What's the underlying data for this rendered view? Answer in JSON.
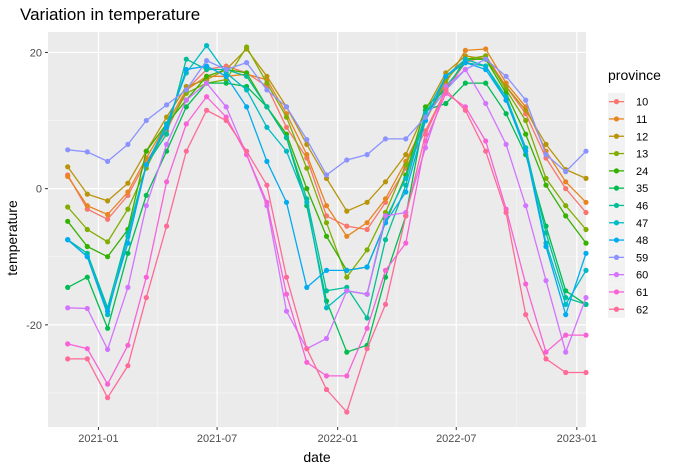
{
  "chart_data": {
    "type": "line",
    "title": "Variation in temperature",
    "xlabel": "date",
    "ylabel": "temperature",
    "x": [
      "2020-11",
      "2020-12",
      "2021-01",
      "2021-02",
      "2021-03",
      "2021-04",
      "2021-05",
      "2021-06",
      "2021-07",
      "2021-08",
      "2021-09",
      "2021-10",
      "2021-11",
      "2021-12",
      "2022-01",
      "2022-02",
      "2022-03",
      "2022-04",
      "2022-05",
      "2022-06",
      "2022-07",
      "2022-08",
      "2022-09",
      "2022-10",
      "2022-11",
      "2022-12",
      "2023-01"
    ],
    "xlim": [
      "2020-10-16",
      "2023-01-15"
    ],
    "x_ticks": [
      {
        "date": "2021-01-01",
        "label": "2021-01"
      },
      {
        "date": "2021-07-01",
        "label": "2021-07"
      },
      {
        "date": "2022-01-01",
        "label": "2022-01"
      },
      {
        "date": "2022-07-01",
        "label": "2022-07"
      },
      {
        "date": "2023-01-01",
        "label": "2023-01"
      }
    ],
    "ylim": [
      -35,
      23
    ],
    "y_ticks": [
      -20,
      0,
      20
    ],
    "grid": true,
    "background": "#EBEBEB",
    "legend": {
      "title": "province",
      "position": "right"
    },
    "series": [
      {
        "name": "10",
        "color": "#F8766D",
        "values": [
          2.0,
          -3.0,
          -4.5,
          -1.0,
          4.0,
          8.5,
          14.5,
          17.5,
          18.0,
          17.0,
          15.0,
          9.0,
          4.5,
          -4.0,
          -5.5,
          -6.0,
          -2.0,
          3.0,
          8.5,
          14.5,
          18.5,
          19.5,
          15.0,
          11.0,
          4.5,
          0.0,
          -3.5
        ]
      },
      {
        "name": "11",
        "color": "#E7851E",
        "values": [
          1.8,
          -2.5,
          -3.8,
          -0.5,
          4.5,
          9.5,
          14.5,
          16.5,
          16.5,
          16.8,
          16.0,
          11.0,
          5.0,
          -2.5,
          -7.0,
          -5.0,
          -1.5,
          4.0,
          10.0,
          15.5,
          20.3,
          20.5,
          15.5,
          12.0,
          5.5,
          1.0,
          -2.0
        ]
      },
      {
        "name": "12",
        "color": "#B8940A",
        "values": [
          3.2,
          -0.8,
          -1.8,
          0.8,
          5.5,
          10.5,
          15.0,
          16.0,
          17.5,
          20.5,
          16.5,
          12.0,
          6.5,
          1.5,
          -3.3,
          -2.0,
          1.0,
          5.0,
          11.5,
          17.0,
          19.5,
          19.0,
          15.0,
          11.5,
          6.5,
          2.8,
          1.5
        ]
      },
      {
        "name": "13",
        "color": "#81AD00",
        "values": [
          -2.7,
          -6.0,
          -7.8,
          -3.0,
          3.0,
          9.0,
          14.0,
          15.5,
          16.0,
          20.8,
          15.5,
          10.5,
          3.0,
          -5.0,
          -13.0,
          -9.0,
          -3.5,
          3.5,
          10.0,
          16.0,
          19.0,
          19.5,
          14.5,
          10.0,
          1.5,
          -2.5,
          -6.0
        ]
      },
      {
        "name": "24",
        "color": "#35B100",
        "values": [
          -4.8,
          -8.5,
          -10.0,
          -6.0,
          5.5,
          9.5,
          13.0,
          16.5,
          17.5,
          17.0,
          12.0,
          8.0,
          0.0,
          -7.0,
          -12.0,
          -11.5,
          -5.0,
          2.0,
          12.0,
          14.5,
          19.0,
          19.0,
          14.0,
          8.0,
          0.5,
          -4.0,
          -8.0
        ]
      },
      {
        "name": "35",
        "color": "#00BC52",
        "values": [
          -14.5,
          -13.0,
          -20.5,
          -9.5,
          -1.0,
          5.5,
          12.0,
          15.5,
          15.5,
          15.0,
          12.0,
          7.5,
          -2.5,
          -16.5,
          -24.0,
          -23.0,
          -13.0,
          -4.0,
          11.5,
          12.5,
          15.5,
          15.5,
          11.0,
          5.0,
          -5.5,
          -15.0,
          -17.0
        ]
      },
      {
        "name": "46",
        "color": "#00BF96",
        "values": [
          -7.5,
          -9.5,
          -17.5,
          -6.5,
          3.5,
          8.0,
          19.0,
          17.5,
          17.5,
          16.5,
          12.0,
          7.5,
          -1.5,
          -15.0,
          -14.5,
          -19.0,
          -7.5,
          0.5,
          11.0,
          15.0,
          18.5,
          18.0,
          13.0,
          6.0,
          -6.5,
          -16.0,
          -17.0
        ]
      },
      {
        "name": "47",
        "color": "#00BBC6",
        "values": [
          -7.5,
          -10.0,
          -18.5,
          -7.0,
          3.5,
          9.5,
          17.0,
          21.0,
          17.0,
          14.5,
          9.0,
          5.5,
          -2.0,
          -17.5,
          -15.0,
          -15.5,
          -4.5,
          1.5,
          11.0,
          16.5,
          19.0,
          18.0,
          13.5,
          6.0,
          -8.0,
          -17.0,
          -12.0
        ]
      },
      {
        "name": "48",
        "color": "#00ABF0",
        "values": [
          -7.5,
          -10.0,
          -18.0,
          -8.0,
          3.5,
          9.0,
          17.5,
          18.0,
          16.5,
          12.0,
          4.0,
          -2.0,
          -14.5,
          -12.0,
          -12.0,
          -11.5,
          -5.0,
          -0.5,
          10.0,
          16.5,
          18.5,
          17.5,
          13.0,
          5.5,
          -8.5,
          -18.5,
          -9.5
        ]
      },
      {
        "name": "59",
        "color": "#8B93FF",
        "values": [
          5.7,
          5.4,
          4.0,
          6.5,
          10.0,
          12.3,
          14.5,
          18.8,
          17.5,
          18.5,
          14.5,
          12.0,
          7.2,
          2.0,
          4.2,
          5.0,
          7.3,
          7.3,
          10.5,
          14.5,
          17.5,
          19.0,
          16.5,
          13.0,
          5.0,
          2.5,
          5.5
        ]
      },
      {
        "name": "60",
        "color": "#D374FF",
        "values": [
          -17.5,
          -17.6,
          -23.6,
          -14.5,
          -2.5,
          6.5,
          13.0,
          15.5,
          12.0,
          5.0,
          -2.5,
          -18.0,
          -23.5,
          -22.0,
          -15.0,
          -15.5,
          -4.0,
          -3.5,
          6.0,
          15.0,
          17.5,
          12.5,
          6.5,
          -2.5,
          -13.5,
          -24.0,
          -16.0
        ]
      },
      {
        "name": "61",
        "color": "#F862D6",
        "values": [
          -22.8,
          -23.5,
          -28.7,
          -23.0,
          -13.0,
          1.0,
          9.5,
          13.5,
          10.5,
          5.0,
          -2.0,
          -15.5,
          -25.5,
          -27.5,
          -27.5,
          -20.5,
          -12.0,
          -8.0,
          7.0,
          14.0,
          12.0,
          7.0,
          -3.0,
          -14.0,
          -24.0,
          -21.5,
          -21.5
        ]
      },
      {
        "name": "62",
        "color": "#FF6A98",
        "values": [
          -25.0,
          -25.0,
          -30.7,
          -26.0,
          -16.0,
          -5.5,
          5.5,
          11.5,
          10.0,
          5.5,
          0.5,
          -13.0,
          -23.5,
          -29.5,
          -32.8,
          -23.5,
          -17.0,
          -4.0,
          8.0,
          14.5,
          11.5,
          5.5,
          -3.5,
          -18.5,
          -25.0,
          -27.0,
          -27.0
        ]
      }
    ]
  }
}
